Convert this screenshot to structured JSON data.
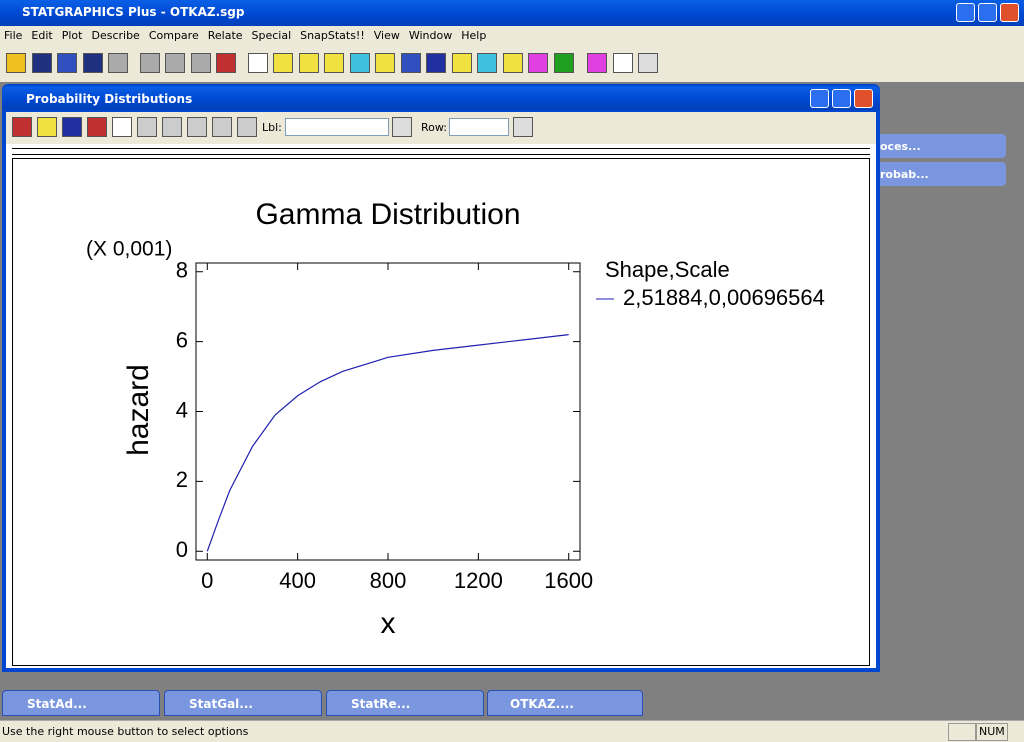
{
  "app": {
    "title": "STATGRAPHICS Plus - OTKAZ.sgp",
    "menu": [
      "File",
      "Edit",
      "Plot",
      "Describe",
      "Compare",
      "Relate",
      "Special",
      "SnapStats!!",
      "View",
      "Window",
      "Help"
    ]
  },
  "window": {
    "title": "Probability Distributions",
    "lbl_label": "Lbl:",
    "row_label": "Row:"
  },
  "chart_data": {
    "type": "line",
    "title": "Gamma Distribution",
    "y_multiplier": "(X 0,001)",
    "xlabel": "x",
    "ylabel": "hazard",
    "legend_title": "Shape,Scale",
    "x": [
      0,
      50,
      100,
      200,
      300,
      400,
      500,
      600,
      800,
      1000,
      1200,
      1400,
      1600
    ],
    "series": [
      {
        "name": "2,51884,0,00696564",
        "color": "#2020b0",
        "values": [
          0,
          0.9,
          1.75,
          3.0,
          3.9,
          4.45,
          4.85,
          5.15,
          5.55,
          5.75,
          5.9,
          6.05,
          6.2
        ]
      }
    ],
    "xlim": [
      -50,
      1650
    ],
    "ylim": [
      -0.25,
      8.25
    ],
    "xticks": [
      0,
      400,
      800,
      1200,
      1600
    ],
    "yticks": [
      0,
      2,
      4,
      6,
      8
    ]
  },
  "minimized_right": [
    "oces...",
    "robab..."
  ],
  "taskbar_windows": [
    "StatAd...",
    "StatGal...",
    "StatRe...",
    "OTKAZ...."
  ],
  "status": {
    "message": "Use the right mouse button to select options",
    "indicator": "NUM"
  }
}
